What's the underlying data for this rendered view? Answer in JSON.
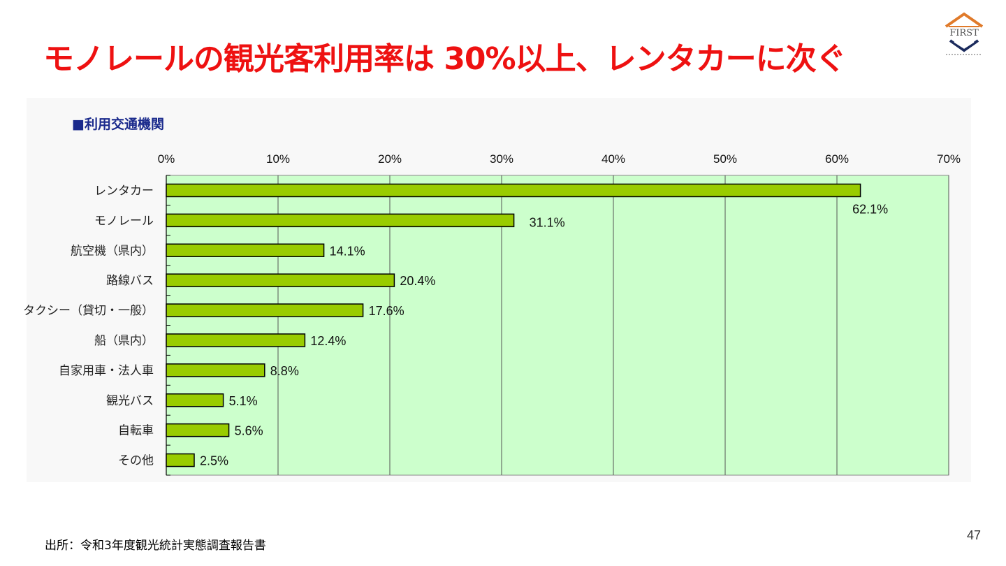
{
  "slide": {
    "title": "モノレールの観光客利用率は 30%以上、レンタカーに次ぐ",
    "source": "出所：令和3年度観光統計実態調査報告書",
    "page_number": "47",
    "logo": {
      "text": "FIRST",
      "icon": "shield-house-logo",
      "color": "#e07a2a"
    }
  },
  "colors": {
    "title": "#ee1111",
    "heading": "#1a2a8c",
    "plot_background": "#ccffcc",
    "bar_fill": "#99cc00",
    "bar_stroke": "#000000"
  },
  "chart_data": {
    "type": "bar",
    "orientation": "horizontal",
    "title": "■利用交通機関",
    "categories": [
      "レンタカー",
      "モノレール",
      "航空機（県内）",
      "路線バス",
      "タクシー（貸切・一般）",
      "船（県内）",
      "自家用車・法人車",
      "観光バス",
      "自転車",
      "その他"
    ],
    "values": [
      62.1,
      31.1,
      14.1,
      20.4,
      17.6,
      12.4,
      8.8,
      5.1,
      5.6,
      2.5
    ],
    "data_labels": [
      "62.1%",
      "31.1%",
      "14.1%",
      "20.4%",
      "17.6%",
      "12.4%",
      "8.8%",
      "5.1%",
      "5.6%",
      "2.5%"
    ],
    "xlim": [
      0,
      70
    ],
    "xticks": [
      0,
      10,
      20,
      30,
      40,
      50,
      60,
      70
    ],
    "xtick_labels": [
      "0%",
      "10%",
      "20%",
      "30%",
      "40%",
      "50%",
      "60%",
      "70%"
    ],
    "xaxis_position": "top",
    "grid": "vertical",
    "legend": "none"
  }
}
